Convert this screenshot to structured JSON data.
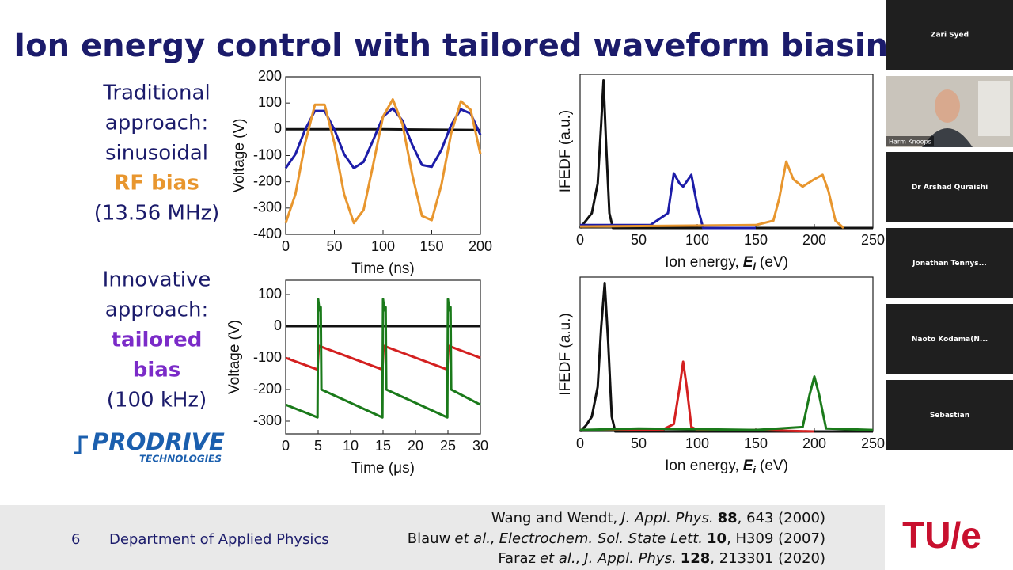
{
  "title": "Ion energy control with tailored waveform biasing",
  "blocks": [
    {
      "lines": [
        "Traditional",
        "approach:",
        "sinusoidal"
      ],
      "highlight": [
        "RF bias"
      ],
      "note": "(13.56 MHz)",
      "highlight_color": "#e8962e"
    },
    {
      "lines": [
        "Innovative",
        "approach:"
      ],
      "highlight": [
        "tailored",
        "bias"
      ],
      "note": "(100 kHz)",
      "highlight_color": "#7b2bc8"
    }
  ],
  "logo": {
    "name": "PRODRIVE",
    "sub": "TECHNOLOGIES"
  },
  "chart_data": [
    {
      "type": "line",
      "xlabel": "Time (ns)",
      "ylabel": "Voltage (V)",
      "xlim": [
        0,
        200
      ],
      "ylim": [
        -400,
        200
      ],
      "xticks": [
        0,
        50,
        100,
        150,
        200
      ],
      "yticks": [
        -400,
        -300,
        -200,
        -100,
        0,
        100,
        200
      ],
      "series": [
        {
          "color": "#111111",
          "x": [
            0,
            100,
            200
          ],
          "values": [
            0,
            0,
            -3
          ]
        },
        {
          "color": "#1c1ca8",
          "x": [
            0,
            10,
            20,
            30,
            40,
            50,
            60,
            70,
            80,
            90,
            100,
            110,
            120,
            130,
            140,
            150,
            160,
            170,
            180,
            190,
            200
          ],
          "values": [
            -148,
            -95,
            -1,
            70,
            70,
            -1,
            -95,
            -148,
            -124,
            -40,
            48,
            80,
            33,
            -59,
            -136,
            -143,
            -78,
            17,
            76,
            60,
            -21
          ]
        },
        {
          "color": "#e8962e",
          "x": [
            0,
            10,
            20,
            30,
            40,
            50,
            60,
            70,
            80,
            90,
            100,
            110,
            120,
            130,
            140,
            150,
            160,
            170,
            180,
            190,
            200
          ],
          "values": [
            -357,
            -247,
            -53,
            94,
            94,
            -53,
            -247,
            -357,
            -307,
            -132,
            49,
            114,
            19,
            -173,
            -330,
            -346,
            -211,
            -15,
            107,
            74,
            -94
          ]
        }
      ]
    },
    {
      "type": "line",
      "ylabel": "IFEDF (a.u.)",
      "xlabel": {
        "text": "Ion energy,",
        "symbol": "E",
        "subscript": "i",
        "unit": "(eV)"
      },
      "xlim": [
        0,
        250
      ],
      "ylim": [
        0,
        1.04
      ],
      "xticks": [
        0,
        50,
        100,
        150,
        200,
        250
      ],
      "series": [
        {
          "color": "#111111",
          "x": [
            0,
            5,
            10,
            15,
            18,
            20,
            22,
            25,
            28,
            50,
            100,
            150,
            200,
            250
          ],
          "values": [
            0,
            0.05,
            0.1,
            0.3,
            0.7,
            1.0,
            0.6,
            0.1,
            0,
            0,
            0,
            0,
            0,
            0
          ]
        },
        {
          "color": "#1c1ca8",
          "x": [
            0,
            60,
            75,
            80,
            85,
            88,
            95,
            100,
            105,
            150
          ],
          "values": [
            0.02,
            0.02,
            0.1,
            0.37,
            0.3,
            0.28,
            0.36,
            0.15,
            0,
            0
          ]
        },
        {
          "color": "#e8962e",
          "x": [
            0,
            150,
            165,
            170,
            176,
            182,
            190,
            200,
            207,
            212,
            218,
            225
          ],
          "values": [
            0.01,
            0.02,
            0.05,
            0.2,
            0.45,
            0.33,
            0.28,
            0.33,
            0.36,
            0.25,
            0.05,
            0
          ]
        }
      ]
    },
    {
      "type": "line",
      "xlabel": "Time (μs)",
      "ylabel": "Voltage (V)",
      "xlim": [
        0,
        30
      ],
      "ylim": [
        -340,
        145
      ],
      "xticks": [
        0,
        5,
        10,
        15,
        20,
        25,
        30
      ],
      "yticks": [
        -300,
        -200,
        -100,
        0,
        100
      ],
      "series": [
        {
          "color": "#111111",
          "x": [
            0,
            30
          ],
          "values": [
            0,
            0
          ]
        },
        {
          "color": "#d42020",
          "x": [
            0,
            4.9,
            5.1,
            14.9,
            15.1,
            24.9,
            25.1,
            30
          ],
          "values": [
            -100,
            -137,
            -62,
            -137,
            -62,
            -137,
            -62,
            -100
          ]
        },
        {
          "color": "#1a7a1a",
          "x": [
            0,
            4.9,
            5.0,
            5.2,
            5.4,
            5.5,
            14.9,
            15.0,
            15.2,
            15.4,
            15.5,
            24.9,
            25.0,
            25.2,
            25.4,
            25.5,
            30
          ],
          "values": [
            -248,
            -288,
            85,
            50,
            60,
            -200,
            -288,
            85,
            50,
            60,
            -200,
            -288,
            85,
            50,
            60,
            -200,
            -248
          ]
        }
      ]
    },
    {
      "type": "line",
      "ylabel": "IFEDF (a.u.)",
      "xlabel": {
        "text": "Ion energy,",
        "symbol": "E",
        "subscript": "i",
        "unit": "(eV)"
      },
      "xlim": [
        0,
        250
      ],
      "ylim": [
        0,
        1.04
      ],
      "xticks": [
        0,
        50,
        100,
        150,
        200,
        250
      ],
      "series": [
        {
          "color": "#111111",
          "x": [
            0,
            5,
            10,
            15,
            18,
            21,
            24,
            27,
            30,
            100,
            200,
            250
          ],
          "values": [
            0,
            0.04,
            0.1,
            0.3,
            0.7,
            1.0,
            0.6,
            0.1,
            0,
            0,
            0,
            0
          ]
        },
        {
          "color": "#d42020",
          "x": [
            0,
            70,
            80,
            85,
            88,
            91,
            95,
            100,
            150,
            200
          ],
          "values": [
            0.01,
            0.01,
            0.05,
            0.3,
            0.47,
            0.3,
            0.03,
            0.01,
            0.01,
            0
          ]
        },
        {
          "color": "#1a7a1a",
          "x": [
            0,
            50,
            150,
            190,
            196,
            200,
            204,
            210,
            250
          ],
          "values": [
            0.01,
            0.02,
            0.01,
            0.03,
            0.25,
            0.37,
            0.25,
            0.02,
            0.01
          ]
        }
      ]
    }
  ],
  "footer": {
    "page": "6",
    "department": "Department of Applied Physics",
    "brand": "TU/e",
    "references": [
      [
        {
          "text": "Wang and Wendt,",
          "style": "normal"
        },
        {
          "text": "J. Appl. Phys.",
          "style": "italic"
        },
        {
          "text": "88",
          "style": "bold"
        },
        {
          "text": ", 643 (2000)",
          "style": "normal"
        }
      ],
      [
        {
          "text": "Blauw",
          "style": "normal"
        },
        {
          "text": "et al.,",
          "style": "italic"
        },
        {
          "text": "Electrochem. Sol. State Lett.",
          "style": "italic"
        },
        {
          "text": "10",
          "style": "bold"
        },
        {
          "text": ", H309 (2007)",
          "style": "normal"
        }
      ],
      [
        {
          "text": "Faraz",
          "style": "normal"
        },
        {
          "text": "et al.,",
          "style": "italic"
        },
        {
          "text": "J. Appl. Phys.",
          "style": "italic"
        },
        {
          "text": "128",
          "style": "bold"
        },
        {
          "text": ", 213301 (2020)",
          "style": "normal"
        }
      ]
    ]
  },
  "participants": [
    {
      "name": "Zari Syed",
      "video": false
    },
    {
      "name": "Harm Knoops",
      "video": true
    },
    {
      "name": "Dr Arshad Quraishi",
      "video": false
    },
    {
      "name": "Jonathan   Tennys...",
      "video": false
    },
    {
      "name": "Naoto  Kodama(N...",
      "video": false
    },
    {
      "name": "Sebastian",
      "video": false
    }
  ]
}
